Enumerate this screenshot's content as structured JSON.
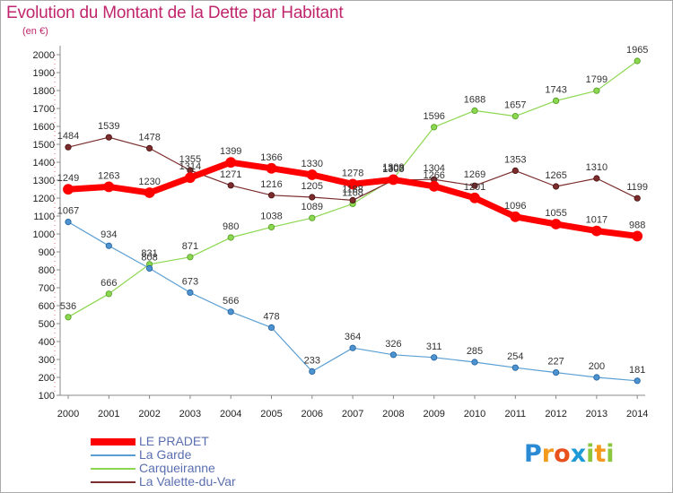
{
  "title": "Evolution du Montant de la Dette par Habitant",
  "unit_label": "(en €)",
  "logo": {
    "text": "Proxiti",
    "letters": [
      {
        "ch": "P",
        "color": "#2a8ad4"
      },
      {
        "ch": "r",
        "color": "#f39a1e"
      },
      {
        "ch": "o",
        "color": "#e8501c"
      },
      {
        "ch": "x",
        "color": "#1e9ad6"
      },
      {
        "ch": "i",
        "color": "#8cc63f"
      },
      {
        "ch": "t",
        "color": "#f39a1e"
      },
      {
        "ch": "i",
        "color": "#8cc63f"
      }
    ]
  },
  "chart_data": {
    "type": "line",
    "title": "Evolution du Montant de la Dette par Habitant",
    "ylabel": "(en €)",
    "xlabel": "",
    "x": [
      "2000",
      "2001",
      "2002",
      "2003",
      "2004",
      "2005",
      "2006",
      "2007",
      "2008",
      "2009",
      "2010",
      "2011",
      "2012",
      "2013",
      "2014"
    ],
    "ylim": [
      100,
      2000
    ],
    "yticks": [
      100,
      200,
      300,
      400,
      500,
      600,
      700,
      800,
      900,
      1000,
      1100,
      1200,
      1300,
      1400,
      1500,
      1600,
      1700,
      1800,
      1900,
      2000
    ],
    "grid": false,
    "legend": "bottom-left",
    "series": [
      {
        "name": "LE PRADET",
        "color": "#ff0000",
        "values": [
          1249,
          1263,
          1230,
          1314,
          1399,
          1366,
          1330,
          1278,
          1303,
          1266,
          1201,
          1096,
          1055,
          1017,
          988
        ]
      },
      {
        "name": "La Garde",
        "color": "#5a9fd4",
        "values": [
          1067,
          934,
          808,
          673,
          566,
          478,
          233,
          364,
          326,
          311,
          285,
          254,
          227,
          200,
          181
        ]
      },
      {
        "name": "Carqueiranne",
        "color": "#8cd750",
        "values": [
          536,
          666,
          831,
          871,
          980,
          1038,
          1089,
          1168,
          1309,
          1596,
          1688,
          1657,
          1743,
          1799,
          1965
        ]
      },
      {
        "name": "La Valette-du-Var",
        "color": "#7b2c2c",
        "values": [
          1484,
          1539,
          1478,
          1355,
          1271,
          1216,
          1205,
          1188,
          1300,
          1304,
          1269,
          1353,
          1265,
          1310,
          1199
        ]
      }
    ]
  }
}
